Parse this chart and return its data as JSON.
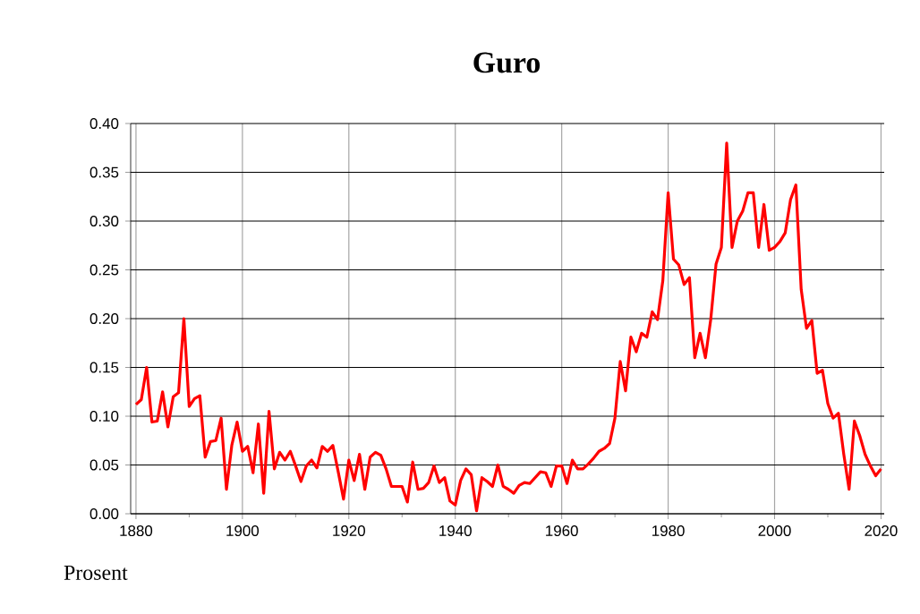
{
  "chart_data": {
    "type": "line",
    "title": "Guro",
    "ylabel": "Prosent",
    "x": [
      1880,
      1881,
      1882,
      1883,
      1884,
      1885,
      1886,
      1887,
      1888,
      1889,
      1890,
      1891,
      1892,
      1893,
      1894,
      1895,
      1896,
      1897,
      1898,
      1899,
      1900,
      1901,
      1902,
      1903,
      1904,
      1905,
      1906,
      1907,
      1908,
      1909,
      1910,
      1911,
      1912,
      1913,
      1914,
      1915,
      1916,
      1917,
      1918,
      1919,
      1920,
      1921,
      1922,
      1923,
      1924,
      1925,
      1926,
      1927,
      1928,
      1929,
      1930,
      1931,
      1932,
      1933,
      1934,
      1935,
      1936,
      1937,
      1938,
      1939,
      1940,
      1941,
      1942,
      1943,
      1944,
      1945,
      1946,
      1947,
      1948,
      1949,
      1950,
      1951,
      1952,
      1953,
      1954,
      1955,
      1956,
      1957,
      1958,
      1959,
      1960,
      1961,
      1962,
      1963,
      1964,
      1965,
      1966,
      1967,
      1968,
      1969,
      1970,
      1971,
      1972,
      1973,
      1974,
      1975,
      1976,
      1977,
      1978,
      1979,
      1980,
      1981,
      1982,
      1983,
      1984,
      1985,
      1986,
      1987,
      1988,
      1989,
      1990,
      1991,
      1992,
      1993,
      1994,
      1995,
      1996,
      1997,
      1998,
      1999,
      2000,
      2001,
      2002,
      2003,
      2004,
      2005,
      2006,
      2007,
      2008,
      2009,
      2010,
      2011,
      2012,
      2013,
      2014,
      2015,
      2016,
      2017,
      2018,
      2019,
      2020
    ],
    "series": [
      {
        "color": "#ff0000",
        "values": [
          0.112,
          0.117,
          0.15,
          0.094,
          0.095,
          0.125,
          0.089,
          0.12,
          0.124,
          0.2,
          0.11,
          0.118,
          0.121,
          0.058,
          0.074,
          0.075,
          0.098,
          0.025,
          0.07,
          0.094,
          0.064,
          0.069,
          0.042,
          0.092,
          0.021,
          0.105,
          0.046,
          0.063,
          0.055,
          0.064,
          0.049,
          0.033,
          0.049,
          0.055,
          0.047,
          0.069,
          0.064,
          0.07,
          0.043,
          0.015,
          0.055,
          0.034,
          0.061,
          0.025,
          0.058,
          0.063,
          0.06,
          0.046,
          0.028,
          0.028,
          0.028,
          0.012,
          0.053,
          0.025,
          0.026,
          0.032,
          0.049,
          0.032,
          0.037,
          0.013,
          0.009,
          0.034,
          0.046,
          0.04,
          0.003,
          0.037,
          0.033,
          0.028,
          0.05,
          0.028,
          0.025,
          0.021,
          0.029,
          0.032,
          0.031,
          0.037,
          0.043,
          0.042,
          0.028,
          0.049,
          0.049,
          0.031,
          0.055,
          0.046,
          0.046,
          0.051,
          0.057,
          0.064,
          0.067,
          0.072,
          0.098,
          0.156,
          0.126,
          0.181,
          0.166,
          0.185,
          0.181,
          0.207,
          0.199,
          0.239,
          0.329,
          0.261,
          0.255,
          0.235,
          0.242,
          0.16,
          0.185,
          0.16,
          0.199,
          0.256,
          0.273,
          0.38,
          0.273,
          0.3,
          0.31,
          0.329,
          0.329,
          0.273,
          0.317,
          0.27,
          0.273,
          0.279,
          0.288,
          0.322,
          0.337,
          0.23,
          0.19,
          0.198,
          0.144,
          0.147,
          0.113,
          0.098,
          0.103,
          0.061,
          0.025,
          0.095,
          0.08,
          0.061,
          0.049,
          0.039,
          0.046
        ]
      }
    ],
    "xlim": [
      1879,
      2020.6
    ],
    "ylim": [
      0,
      0.4
    ],
    "xticks": [
      1880,
      1900,
      1920,
      1940,
      1960,
      1980,
      2000,
      2020
    ],
    "yticks": [
      {
        "value": 0,
        "label": "0.00"
      },
      {
        "value": 0.05,
        "label": "0.05"
      },
      {
        "value": 0.1,
        "label": "0.10"
      },
      {
        "value": 0.15,
        "label": "0.15"
      },
      {
        "value": 0.2,
        "label": "0.20"
      },
      {
        "value": 0.25,
        "label": "0.25"
      },
      {
        "value": 0.3,
        "label": "0.30"
      },
      {
        "value": 0.35,
        "label": "0.35"
      },
      {
        "value": 0.4,
        "label": "0.40"
      }
    ],
    "grid": true,
    "marker": "none",
    "line_style": "solid"
  }
}
